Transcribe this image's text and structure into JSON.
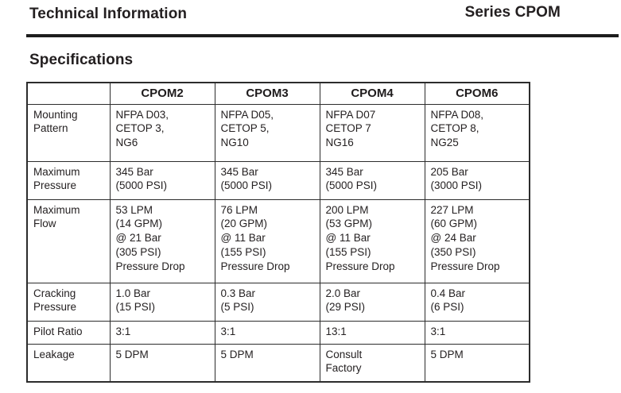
{
  "header": {
    "left_title": "Technical Information",
    "right_title": "Series CPOM"
  },
  "section_title": "Specifications",
  "table": {
    "columns": [
      "",
      "CPOM2",
      "CPOM3",
      "CPOM4",
      "CPOM6"
    ],
    "rows": [
      {
        "label": "Mounting\nPattern",
        "cells": [
          "NFPA D03,\nCETOP 3,\nNG6",
          "NFPA D05,\nCETOP 5,\nNG10",
          "NFPA D07\nCETOP 7\nNG16",
          "NFPA D08,\nCETOP 8,\nNG25"
        ]
      },
      {
        "label": "Maximum\nPressure",
        "cells": [
          "345 Bar\n(5000 PSI)",
          "345 Bar\n(5000 PSI)",
          "345 Bar\n(5000 PSI)",
          "205 Bar\n(3000 PSI)"
        ]
      },
      {
        "label": "Maximum\nFlow",
        "cells": [
          "53 LPM\n(14 GPM)\n@ 21 Bar\n(305 PSI)\nPressure Drop",
          "76 LPM\n(20 GPM)\n@ 11 Bar\n(155 PSI)\nPressure Drop",
          "200 LPM\n(53 GPM)\n@ 11 Bar\n(155 PSI)\nPressure Drop",
          "227 LPM\n(60 GPM)\n@ 24 Bar\n(350 PSI)\nPressure Drop"
        ]
      },
      {
        "label": "Cracking\nPressure",
        "cells": [
          "1.0 Bar\n(15 PSI)",
          "0.3 Bar\n(5 PSI)",
          "2.0 Bar\n(29 PSI)",
          "0.4 Bar\n(6 PSI)"
        ]
      },
      {
        "label": "Pilot Ratio",
        "cells": [
          "3:1",
          "3:1",
          "13:1",
          "3:1"
        ]
      },
      {
        "label": "Leakage",
        "cells": [
          "5 DPM",
          "5 DPM",
          "Consult\nFactory",
          "5 DPM"
        ]
      }
    ]
  },
  "colors": {
    "text": "#231f20",
    "table_border": "#2c2c2c",
    "header_rule": "#1d1d1d",
    "background": "#ffffff"
  }
}
